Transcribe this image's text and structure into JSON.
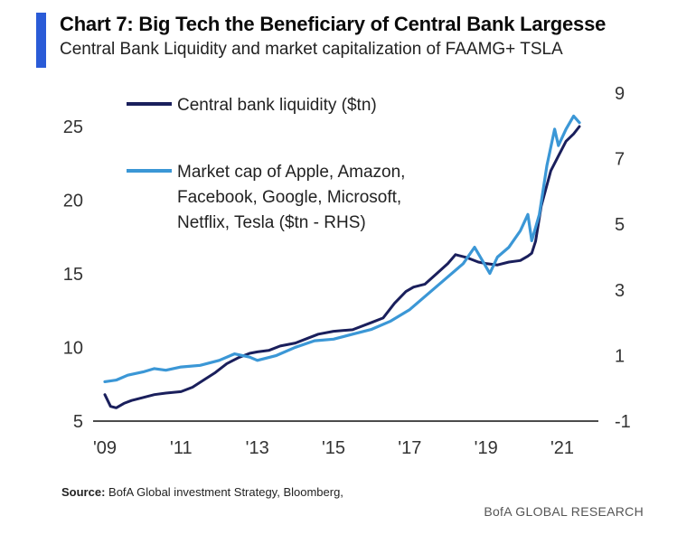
{
  "header": {
    "title": "Chart 7: Big Tech the Beneficiary of Central Bank Largesse",
    "subtitle": "Central Bank  Liquidity and market capitalization of FAAMG+ TSLA"
  },
  "footer": {
    "source_label": "Source:",
    "source_text": "BofA Global investment Strategy, Bloomberg,",
    "brand": "BofA GLOBAL RESEARCH"
  },
  "colors": {
    "accent": "#2a5bd7",
    "liquidity": "#1a1f5c",
    "market_cap": "#3b97d6"
  },
  "chart_data": {
    "type": "line",
    "title": "Chart 7: Big Tech the Beneficiary of Central Bank Largesse",
    "subtitle": "Central Bank  Liquidity and market capitalization of FAAMG+ TSLA",
    "x_ticks": [
      "'09",
      "'11",
      "'13",
      "'15",
      "'17",
      "'19",
      "'21"
    ],
    "x_range": [
      2009,
      2022
    ],
    "y_left": {
      "range": [
        5,
        25
      ],
      "ticks": [
        "5",
        "10",
        "15",
        "20",
        "25"
      ]
    },
    "y_right": {
      "range": [
        -1,
        9
      ],
      "ticks": [
        "-1",
        "1",
        "3",
        "5",
        "7",
        "9"
      ]
    },
    "grid": false,
    "legend_position": "top-left",
    "series": [
      {
        "name": "Central bank liquidity ($tn)",
        "axis": "left",
        "color": "#1a1f5c",
        "points": [
          [
            2009.0,
            6.8
          ],
          [
            2009.15,
            6.0
          ],
          [
            2009.3,
            5.9
          ],
          [
            2009.5,
            6.2
          ],
          [
            2009.7,
            6.4
          ],
          [
            2010.0,
            6.6
          ],
          [
            2010.3,
            6.8
          ],
          [
            2010.6,
            6.9
          ],
          [
            2011.0,
            7.0
          ],
          [
            2011.3,
            7.3
          ],
          [
            2011.6,
            7.8
          ],
          [
            2011.9,
            8.3
          ],
          [
            2012.2,
            8.9
          ],
          [
            2012.5,
            9.3
          ],
          [
            2012.8,
            9.6
          ],
          [
            2013.0,
            9.7
          ],
          [
            2013.3,
            9.8
          ],
          [
            2013.6,
            10.1
          ],
          [
            2014.0,
            10.3
          ],
          [
            2014.3,
            10.6
          ],
          [
            2014.6,
            10.9
          ],
          [
            2015.0,
            11.1
          ],
          [
            2015.5,
            11.2
          ],
          [
            2016.0,
            11.7
          ],
          [
            2016.3,
            12.0
          ],
          [
            2016.6,
            13.0
          ],
          [
            2016.9,
            13.8
          ],
          [
            2017.1,
            14.1
          ],
          [
            2017.4,
            14.3
          ],
          [
            2017.7,
            15.0
          ],
          [
            2018.0,
            15.7
          ],
          [
            2018.2,
            16.3
          ],
          [
            2018.5,
            16.1
          ],
          [
            2018.8,
            15.8
          ],
          [
            2019.0,
            15.7
          ],
          [
            2019.3,
            15.6
          ],
          [
            2019.6,
            15.8
          ],
          [
            2019.9,
            15.9
          ],
          [
            2020.1,
            16.2
          ],
          [
            2020.2,
            16.4
          ],
          [
            2020.3,
            17.2
          ],
          [
            2020.45,
            19.6
          ],
          [
            2020.7,
            22.0
          ],
          [
            2020.9,
            23.0
          ],
          [
            2021.1,
            24.0
          ],
          [
            2021.3,
            24.5
          ],
          [
            2021.45,
            25.0
          ]
        ]
      },
      {
        "name": "Market cap of Apple, Amazon, Facebook, Google, Microsoft, Netflix, Tesla ($tn - RHS)",
        "axis": "right",
        "color": "#3b97d6",
        "points": [
          [
            2009.0,
            0.2
          ],
          [
            2009.3,
            0.25
          ],
          [
            2009.6,
            0.4
          ],
          [
            2010.0,
            0.5
          ],
          [
            2010.3,
            0.6
          ],
          [
            2010.6,
            0.55
          ],
          [
            2011.0,
            0.65
          ],
          [
            2011.5,
            0.7
          ],
          [
            2012.0,
            0.85
          ],
          [
            2012.4,
            1.05
          ],
          [
            2012.8,
            0.95
          ],
          [
            2013.0,
            0.85
          ],
          [
            2013.5,
            1.0
          ],
          [
            2014.0,
            1.25
          ],
          [
            2014.5,
            1.45
          ],
          [
            2015.0,
            1.5
          ],
          [
            2015.5,
            1.65
          ],
          [
            2016.0,
            1.8
          ],
          [
            2016.5,
            2.05
          ],
          [
            2017.0,
            2.4
          ],
          [
            2017.5,
            2.9
          ],
          [
            2018.0,
            3.4
          ],
          [
            2018.4,
            3.8
          ],
          [
            2018.7,
            4.3
          ],
          [
            2018.9,
            3.9
          ],
          [
            2019.1,
            3.5
          ],
          [
            2019.3,
            4.0
          ],
          [
            2019.6,
            4.3
          ],
          [
            2019.9,
            4.8
          ],
          [
            2020.1,
            5.3
          ],
          [
            2020.2,
            4.5
          ],
          [
            2020.4,
            5.3
          ],
          [
            2020.6,
            6.8
          ],
          [
            2020.8,
            7.9
          ],
          [
            2020.9,
            7.4
          ],
          [
            2021.1,
            7.9
          ],
          [
            2021.3,
            8.3
          ],
          [
            2021.45,
            8.1
          ]
        ]
      }
    ],
    "legend": {
      "liquidity_label": "Central bank liquidity ($tn)",
      "market_cap_lines": [
        "Market cap of Apple, Amazon,",
        "Facebook, Google, Microsoft,",
        "Netflix, Tesla ($tn - RHS)"
      ]
    }
  }
}
